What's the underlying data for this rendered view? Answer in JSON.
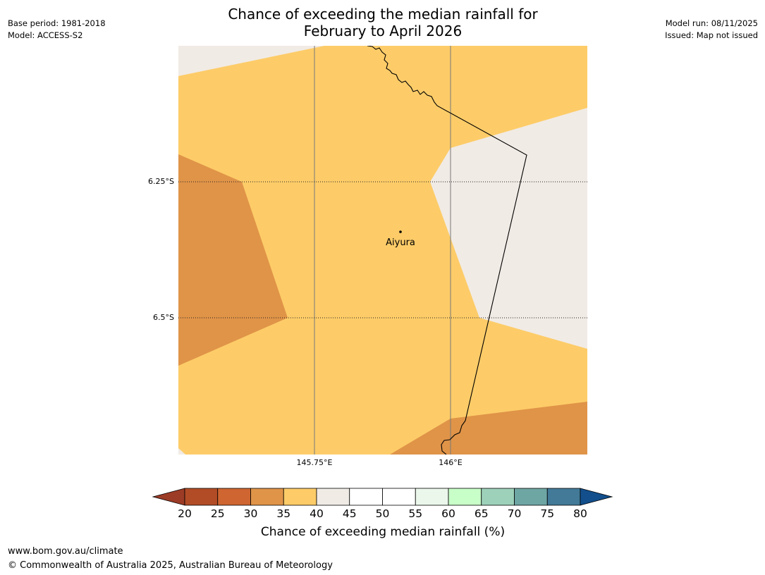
{
  "header": {
    "title_line1": "Chance of exceeding the median rainfall for",
    "title_line2": "February to April 2026",
    "base_period": "Base period: 1981-2018",
    "model": "Model: ACCESS-S2",
    "model_run": "Model run: 08/11/2025",
    "issued": "Issued: Map not issued"
  },
  "map": {
    "place_name": "Aiyura",
    "lat_labels": [
      "6.25°S",
      "6.5°S"
    ],
    "lon_labels": [
      "145.75°E",
      "146°E"
    ],
    "region_colors": {
      "below_35": "#e09448",
      "35_40": "#fdcc68",
      "40_45": "#f1ebe5"
    }
  },
  "colorbar": {
    "ticks": [
      "20",
      "25",
      "30",
      "35",
      "40",
      "45",
      "50",
      "55",
      "60",
      "65",
      "70",
      "75",
      "80"
    ],
    "colors": [
      "#b24c26",
      "#cf6531",
      "#e09448",
      "#fdcc68",
      "#f1ebe5",
      "#ffffff",
      "#ffffff",
      "#eaf7ea",
      "#c8ffc8",
      "#9dd1ba",
      "#6ea6a4",
      "#427a98"
    ],
    "under_color": "#9c3b26",
    "over_color": "#124f8c",
    "title": "Chance of exceeding median rainfall (%)"
  },
  "footer": {
    "url": "www.bom.gov.au/climate",
    "copyright": "© Commonwealth of Australia 2025, Australian Bureau of Meteorology"
  }
}
